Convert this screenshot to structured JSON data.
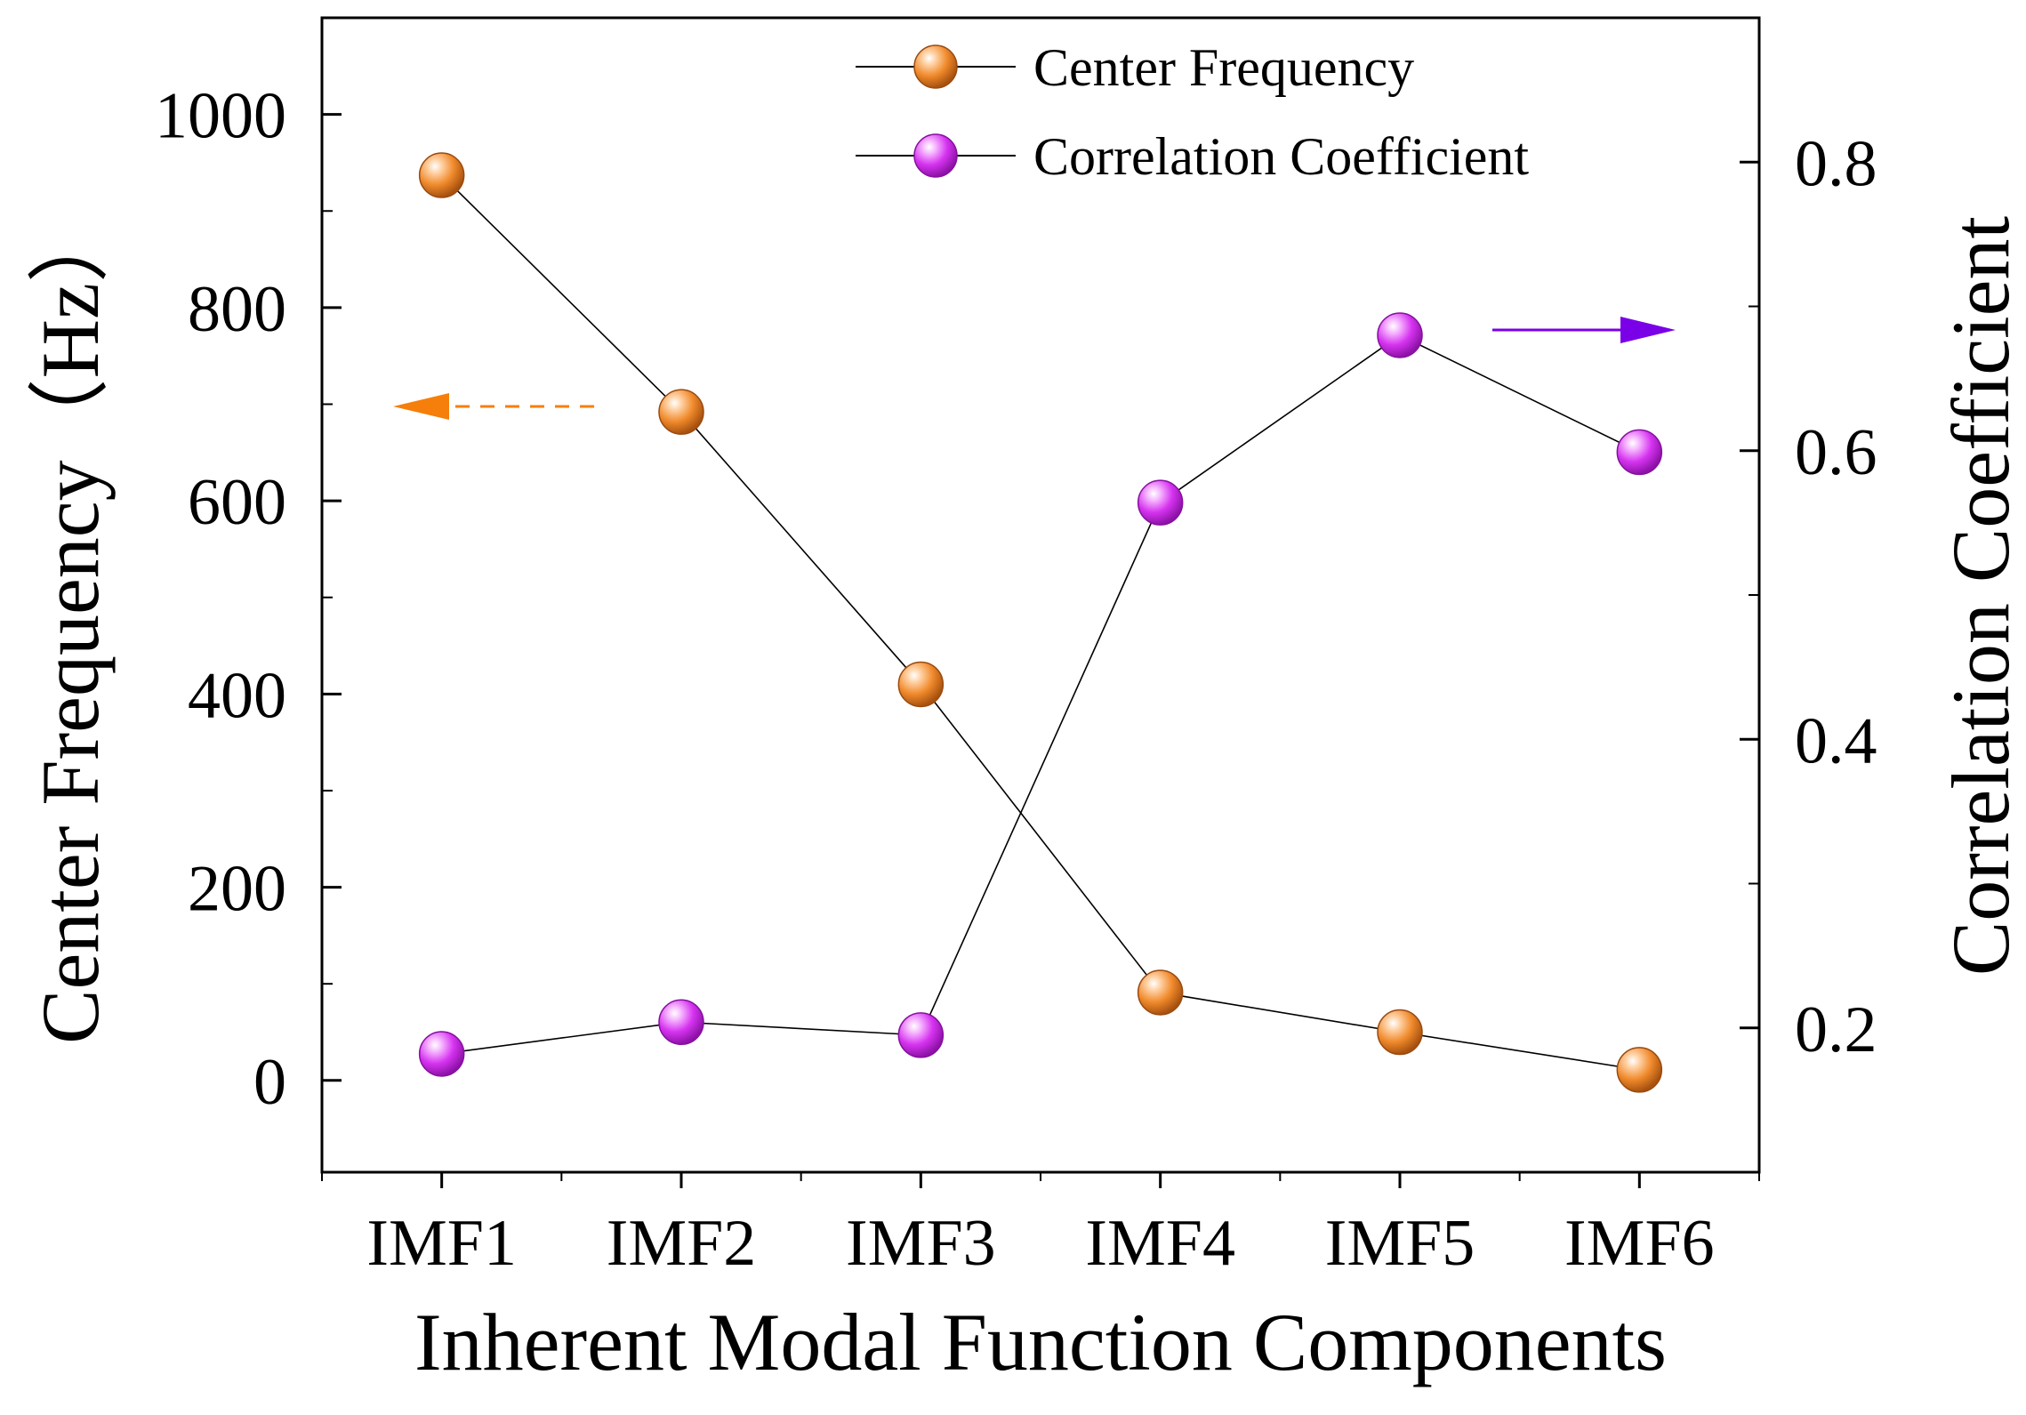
{
  "chart_data": {
    "type": "line",
    "title": "",
    "xlabel": "Inherent Modal Function Components",
    "ylabel_left": "Center Frequency（Hz）",
    "ylabel_right": "Correlation Coefficient",
    "categories": [
      "IMF1",
      "IMF2",
      "IMF3",
      "IMF4",
      "IMF5",
      "IMF6"
    ],
    "ylim_left": [
      -95,
      1100
    ],
    "ylim_right": [
      0.1,
      0.9
    ],
    "yticks_left": [
      0,
      200,
      400,
      600,
      800,
      1000
    ],
    "yticks_left_labels": [
      "0",
      "200",
      "400",
      "600",
      "800",
      "1000"
    ],
    "yticks_right": [
      0.2,
      0.4,
      0.6,
      0.8
    ],
    "yticks_right_labels": [
      "0.2",
      "0.4",
      "0.6",
      "0.8"
    ],
    "legend_position": "top-right",
    "series": [
      {
        "name": "Center Frequency",
        "axis": "left",
        "color": "#F08A2C",
        "values": [
          937,
          692,
          410,
          91,
          50,
          11
        ]
      },
      {
        "name": "Correlation Coefficient",
        "axis": "right",
        "color": "#D633F0",
        "values": [
          0.182,
          0.204,
          0.195,
          0.564,
          0.68,
          0.599
        ]
      }
    ],
    "annotations": [
      {
        "type": "arrow",
        "direction": "left",
        "style": "dashed",
        "color": "#F57F0A",
        "meaning": "left axis"
      },
      {
        "type": "arrow",
        "direction": "right",
        "style": "solid",
        "color": "#7A00E8",
        "meaning": "right axis"
      }
    ]
  }
}
